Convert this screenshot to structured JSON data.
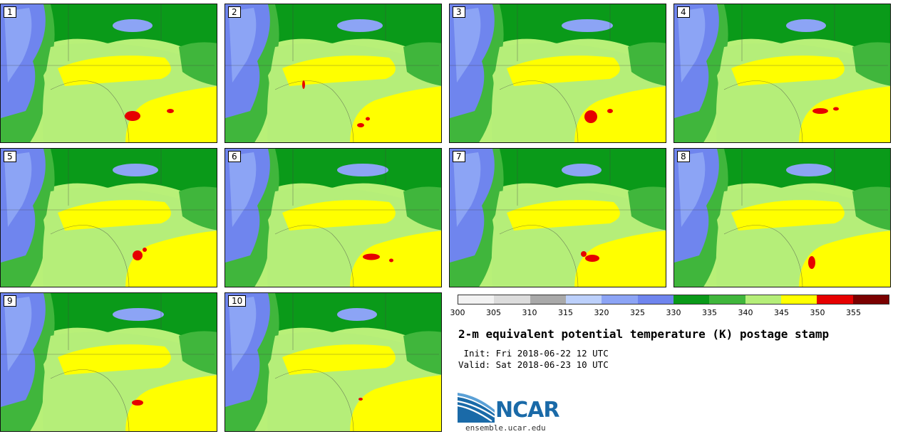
{
  "figure": {
    "title": "2-m equivalent potential temperature (K) postage stamp",
    "init_text": " Init: Fri 2018-06-22 12 UTC",
    "valid_text": "Valid: Sat 2018-06-23 10 UTC"
  },
  "members": [
    "1",
    "2",
    "3",
    "4",
    "5",
    "6",
    "7",
    "8",
    "9",
    "10"
  ],
  "colorbar": {
    "ticks": [
      "300",
      "305",
      "310",
      "315",
      "320",
      "325",
      "330",
      "335",
      "340",
      "345",
      "350",
      "355"
    ],
    "colors": [
      "#f2f2f2",
      "#dcdcdc",
      "#a9a9a9",
      "#bcd0fb",
      "#8ca4f5",
      "#6f85ee",
      "#0a9a19",
      "#40b63c",
      "#b5ee79",
      "#ffff00",
      "#e60000",
      "#7a0000"
    ]
  },
  "logo": {
    "text": "NCAR",
    "url": "ensemble.ucar.edu"
  }
}
